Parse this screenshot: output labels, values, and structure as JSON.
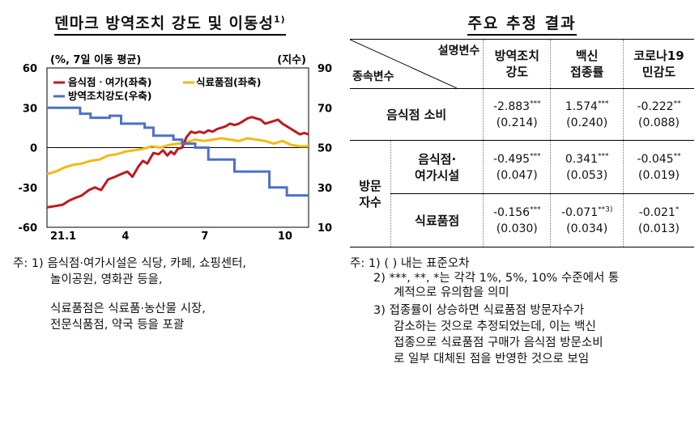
{
  "left_title": "덴마크 방역조치 강도 및 이동성",
  "left_title_sup": "1)",
  "right_title": "주요 추정 결과",
  "chart_data": {
    "type": "line",
    "title": "",
    "unit_left": "(%, 7일 이동 평균)",
    "unit_right": "(지수)",
    "left_ylim": [
      -60,
      60
    ],
    "left_yticks": [
      "60",
      "30",
      "0",
      "-30",
      "-60"
    ],
    "right_ylim": [
      10,
      90
    ],
    "right_yticks": [
      "90",
      "70",
      "50",
      "30",
      "10"
    ],
    "xticks": [
      "21.1",
      "4",
      "7",
      "10"
    ],
    "x_range_days": [
      0,
      300
    ],
    "legend": [
      "음식점ㆍ여가(좌축)",
      "식료품점(좌축)",
      "방역조치강도(우축)"
    ],
    "colors": {
      "restaurant": "#c0191e",
      "grocery": "#f5b814",
      "stringency": "#4a72c2"
    },
    "series": [
      {
        "name": "음식점ㆍ여가(좌축)",
        "axis": "left",
        "x": [
          0,
          10,
          18,
          25,
          32,
          40,
          48,
          55,
          62,
          70,
          78,
          85,
          92,
          98,
          105,
          110,
          115,
          122,
          128,
          133,
          138,
          142,
          146,
          150,
          155,
          160,
          165,
          170,
          175,
          180,
          185,
          190,
          195,
          200,
          205,
          210,
          215,
          220,
          225,
          230,
          235,
          240,
          245,
          250,
          255,
          260,
          265,
          270,
          275,
          280,
          285,
          290,
          295,
          300
        ],
        "y": [
          -45,
          -44,
          -43,
          -40,
          -38,
          -36,
          -32,
          -30,
          -32,
          -24,
          -22,
          -20,
          -18,
          -22,
          -14,
          -10,
          -12,
          -4,
          -5,
          -2,
          -6,
          -3,
          -5,
          -1,
          0,
          8,
          12,
          11,
          12,
          11,
          13,
          12,
          14,
          15,
          16,
          18,
          17,
          18,
          20,
          22,
          23,
          22,
          21,
          18,
          19,
          20,
          21,
          18,
          16,
          14,
          12,
          10,
          11,
          10
        ]
      },
      {
        "name": "식료품점(좌축)",
        "axis": "left",
        "x": [
          0,
          10,
          20,
          30,
          40,
          50,
          60,
          70,
          80,
          90,
          100,
          110,
          120,
          130,
          140,
          150,
          160,
          170,
          180,
          190,
          200,
          210,
          220,
          230,
          240,
          250,
          260,
          270,
          280,
          290,
          300
        ],
        "y": [
          -20,
          -18,
          -15,
          -13,
          -12,
          -10,
          -9,
          -6,
          -5,
          -3,
          -2,
          -1,
          1,
          0,
          2,
          3,
          4,
          6,
          5,
          6,
          7,
          6,
          5,
          7,
          6,
          5,
          3,
          5,
          2,
          1,
          1
        ]
      },
      {
        "name": "방역조치강도(우축)",
        "axis": "right",
        "x": [
          0,
          38,
          38,
          50,
          50,
          72,
          72,
          85,
          85,
          112,
          112,
          122,
          122,
          145,
          145,
          155,
          155,
          170,
          170,
          185,
          185,
          215,
          215,
          255,
          255,
          275,
          275,
          300
        ],
        "y": [
          70,
          70,
          67,
          67,
          65,
          65,
          66,
          66,
          62,
          62,
          60,
          60,
          56,
          56,
          54,
          54,
          52,
          52,
          50,
          50,
          44,
          44,
          38,
          38,
          30,
          30,
          26,
          26
        ]
      }
    ]
  },
  "table": {
    "header_top_right": "설명변수",
    "header_bottom_left": "종속변수",
    "columns": [
      [
        "방역조치",
        "강도"
      ],
      [
        "백신",
        "접종률"
      ],
      [
        "코로나19",
        "민감도"
      ]
    ],
    "row1_label": "음식점 소비",
    "group_label": [
      "방문",
      "자수"
    ],
    "sub1_label": [
      "음식점·",
      "여가시설"
    ],
    "sub2_label": "식료품점",
    "rows": [
      [
        {
          "c": "-2.883",
          "s": "***",
          "se": "(0.214)"
        },
        {
          "c": "1.574",
          "s": "***",
          "se": "(0.240)"
        },
        {
          "c": "-0.222",
          "s": "**",
          "se": "(0.088)"
        }
      ],
      [
        {
          "c": "-0.495",
          "s": "***",
          "se": "(0.047)"
        },
        {
          "c": "0.341",
          "s": "***",
          "se": "(0.053)"
        },
        {
          "c": "-0.045",
          "s": "**",
          "se": "(0.019)"
        }
      ],
      [
        {
          "c": "-0.156",
          "s": "***",
          "se": "(0.030)"
        },
        {
          "c": "-0.071",
          "s": "**3)",
          "se": "(0.034)"
        },
        {
          "c": "-0.021",
          "s": "*",
          "se": "(0.013)"
        }
      ]
    ]
  },
  "left_notes": [
    "주: 1) 음식점·여가시설은 식당, 카페, 쇼핑센터,",
    "놀이공원, 영화관 등을,",
    "식료품점은 식료품·농산물 시장,",
    "전문식품점, 약국 등을 포괄"
  ],
  "right_notes": [
    "주: 1) (   ) 내는 표준오차",
    "2)  ***, **, *는 각각 1%, 5%, 10% 수준에서 통",
    "계적으로 유의함을 의미",
    "3) 접종률이 상승하면 식료품점 방문자수가",
    "감소하는 것으로 추정되었는데, 이는 백신",
    "접종으로 식료품점 구매가 음식점 방문소비",
    "로 일부 대체된 점을 반영한 것으로 보임"
  ]
}
